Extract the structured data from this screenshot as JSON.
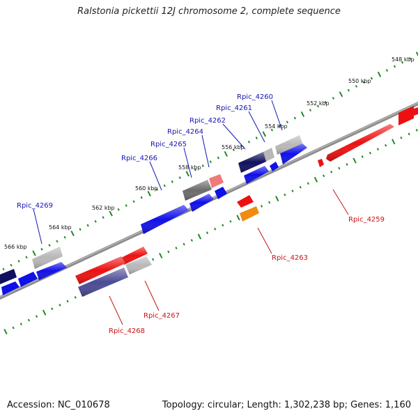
{
  "title": "Ralstonia pickettii 12J chromosome 2, complete sequence",
  "footer": {
    "accession": "Accession: NC_010678",
    "stats": "Topology: circular; Length: 1,302,238 bp; Genes: 1,160"
  },
  "colors": {
    "backbone": "#8c8c8c",
    "tick": "#1f8a1f",
    "forward_label": "#1515b0",
    "reverse_label": "#c81414",
    "gene_blue": "#1010e8",
    "gene_navy": "#10105e",
    "gene_red": "#ee1010",
    "gene_pink": "#f07a7a",
    "gene_gray": "#b8b8b8",
    "gene_darkgray": "#6c6c6c",
    "gene_purple": "#4a4a96",
    "gene_orange": "#f08c10"
  },
  "scale_labels": [
    "548 kbp",
    "550 kbp",
    "552 kbp",
    "554 kbp",
    "556 kbp",
    "558 kbp",
    "560 kbp",
    "562 kbp",
    "564 kbp",
    "566 kbp"
  ],
  "forward_genes": [
    "Rpic_4260",
    "Rpic_4261",
    "Rpic_4262",
    "Rpic_4264",
    "Rpic_4265",
    "Rpic_4266",
    "Rpic_4269"
  ],
  "reverse_genes": [
    "Rpic_4259",
    "Rpic_4263",
    "Rpic_4267",
    "Rpic_4268"
  ]
}
